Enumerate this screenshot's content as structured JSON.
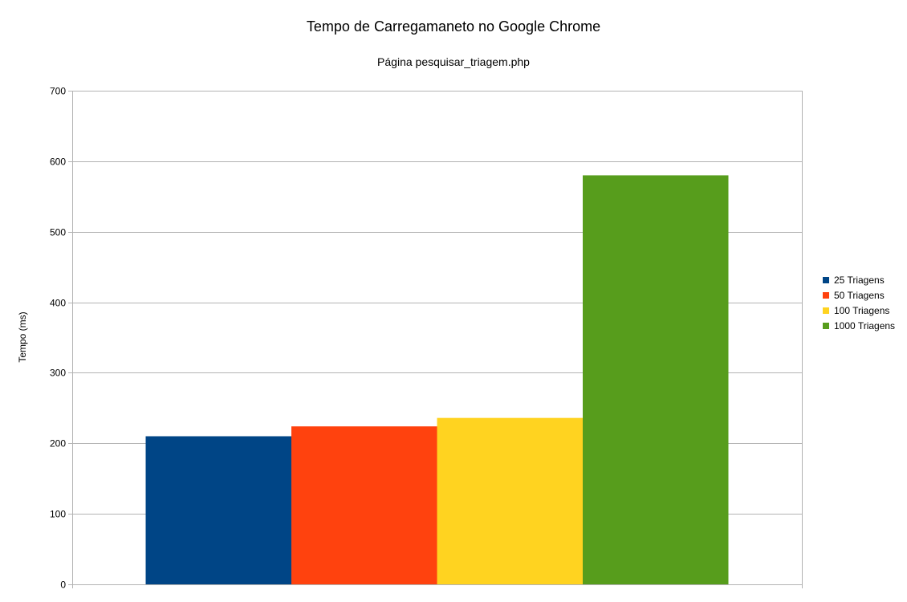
{
  "chart_data": {
    "type": "bar",
    "title": "Tempo de Carregamaneto no Google Chrome",
    "subtitle": "Página pesquisar_triagem.php",
    "xlabel": "",
    "ylabel": "Tempo (ms)",
    "ylim": [
      0,
      700
    ],
    "yticks": [
      0,
      100,
      200,
      300,
      400,
      500,
      600,
      700
    ],
    "grid": true,
    "legend_position": "right",
    "categories": [
      ""
    ],
    "series": [
      {
        "name": "25 Triagens",
        "values": [
          210
        ],
        "color": "#004586"
      },
      {
        "name": "50 Triagens",
        "values": [
          224
        ],
        "color": "#ff420e"
      },
      {
        "name": "100 Triagens",
        "values": [
          236
        ],
        "color": "#ffd320"
      },
      {
        "name": "1000 Triagens",
        "values": [
          580
        ],
        "color": "#579d1c"
      }
    ]
  }
}
